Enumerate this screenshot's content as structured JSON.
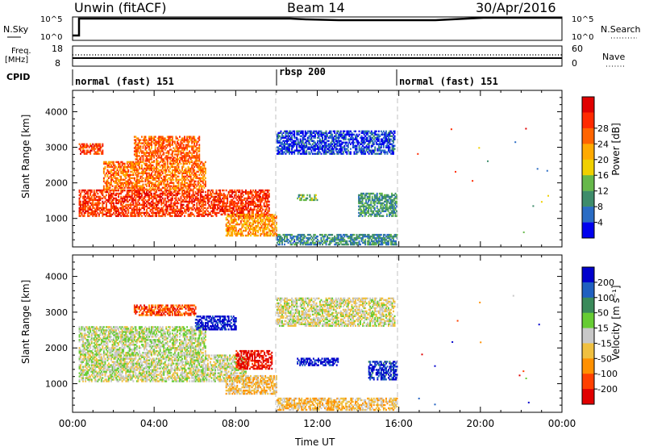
{
  "header": {
    "station": "Unwin (fitACF)",
    "beam": "Beam 14",
    "date": "30/Apr/2016"
  },
  "noise_panel": {
    "left_label": "N.Sky",
    "right_label": "N.Search",
    "left_ticks": [
      "10^5",
      "10^0"
    ],
    "right_ticks": [
      "10^5",
      "10^0"
    ]
  },
  "freq_panel": {
    "left_label_1": "Freq.",
    "left_label_2": "[MHz]",
    "left_ticks": [
      "18",
      "8"
    ],
    "right_label": "Nave",
    "right_ticks": [
      "60",
      "0"
    ]
  },
  "cpid_panel": {
    "label": "CPID",
    "segments": [
      {
        "start": 0,
        "end": 10,
        "name": "normal (fast) 151"
      },
      {
        "start": 10,
        "end": 16,
        "name": "rbsp 200"
      },
      {
        "start": 16,
        "end": 24,
        "name": "normal (fast) 151"
      }
    ]
  },
  "chart_data": [
    {
      "type": "heatmap",
      "panel": "power",
      "xlabel": "",
      "ylabel": "Slant Range [km]",
      "xlim": [
        0,
        24
      ],
      "ylim": [
        200,
        4600
      ],
      "yticks": [
        "1000",
        "2000",
        "3000",
        "4000"
      ],
      "colorbar_label": "Power [dB]",
      "colorbar_ticks": [
        "4",
        "8",
        "12",
        "16",
        "20",
        "24",
        "28"
      ],
      "colors": [
        "#0000ee",
        "#2a6cc4",
        "#3e8c6b",
        "#66b84a",
        "#f0d000",
        "#ffaa00",
        "#ff6400",
        "#ff2a00",
        "#e00000"
      ],
      "regions": [
        {
          "t0": 0.3,
          "t1": 9.6,
          "r0": 1050,
          "r1": 1800,
          "level": 0.82
        },
        {
          "t0": 1.5,
          "t1": 6.5,
          "r0": 1800,
          "r1": 2600,
          "level": 0.72
        },
        {
          "t0": 0.3,
          "t1": 1.5,
          "r0": 2800,
          "r1": 3100,
          "level": 0.78
        },
        {
          "t0": 3.0,
          "t1": 6.2,
          "r0": 2600,
          "r1": 3300,
          "level": 0.75
        },
        {
          "t0": 10.0,
          "t1": 15.8,
          "r0": 2800,
          "r1": 3450,
          "level": 0.12
        },
        {
          "t0": 14.0,
          "t1": 15.9,
          "r0": 1050,
          "r1": 1700,
          "level": 0.3
        },
        {
          "t0": 10.0,
          "t1": 15.9,
          "r0": 250,
          "r1": 550,
          "level": 0.25
        },
        {
          "t0": 7.5,
          "t1": 10.0,
          "r0": 500,
          "r1": 1100,
          "level": 0.65
        },
        {
          "t0": 11.0,
          "t1": 12.0,
          "r0": 1500,
          "r1": 1650,
          "level": 0.35
        }
      ]
    },
    {
      "type": "heatmap",
      "panel": "velocity",
      "xlabel": "Time UT",
      "ylabel": "Slant Range [km]",
      "xlim": [
        0,
        24
      ],
      "ylim": [
        200,
        4600
      ],
      "xticks": [
        "00:00",
        "04:00",
        "08:00",
        "12:00",
        "16:00",
        "20:00",
        "00:00"
      ],
      "yticks": [
        "1000",
        "2000",
        "3000",
        "4000"
      ],
      "colorbar_label": "Velocity [m s⁻¹]",
      "colorbar_ticks": [
        "200",
        "100",
        "50",
        "15",
        "-15",
        "-50",
        "-100",
        "-200"
      ],
      "colors": [
        "#0000cc",
        "#2060c0",
        "#3a8a5a",
        "#66cc33",
        "#c8c8c8",
        "#f0c040",
        "#ff9000",
        "#ff4000",
        "#e00000"
      ],
      "regions": [
        {
          "t0": 0.3,
          "t1": 8.5,
          "r0": 1050,
          "r1": 1800,
          "level": 0.5
        },
        {
          "t0": 0.3,
          "t1": 6.5,
          "r0": 1800,
          "r1": 2600,
          "level": 0.48
        },
        {
          "t0": 3.0,
          "t1": 6.0,
          "r0": 2900,
          "r1": 3200,
          "level": 0.82
        },
        {
          "t0": 6.0,
          "t1": 8.0,
          "r0": 2500,
          "r1": 2900,
          "level": 0.05
        },
        {
          "t0": 8.0,
          "t1": 9.8,
          "r0": 1400,
          "r1": 1900,
          "level": 0.95
        },
        {
          "t0": 10.0,
          "t1": 15.8,
          "r0": 2600,
          "r1": 3400,
          "level": 0.52
        },
        {
          "t0": 11.0,
          "t1": 13.0,
          "r0": 1500,
          "r1": 1700,
          "level": 0.05
        },
        {
          "t0": 14.5,
          "t1": 15.9,
          "r0": 1100,
          "r1": 1600,
          "level": 0.1
        },
        {
          "t0": 10.0,
          "t1": 15.9,
          "r0": 250,
          "r1": 600,
          "level": 0.62
        },
        {
          "t0": 7.5,
          "t1": 10.0,
          "r0": 700,
          "r1": 1200,
          "level": 0.62
        }
      ]
    }
  ]
}
